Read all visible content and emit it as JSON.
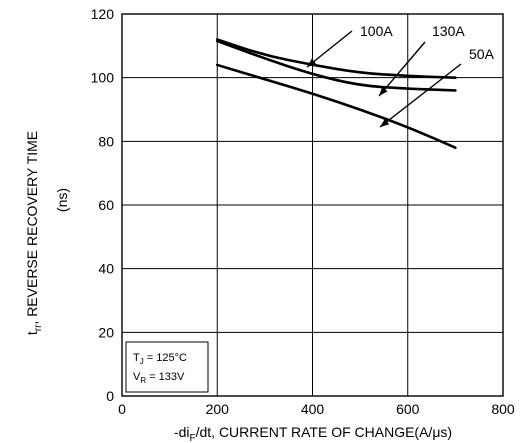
{
  "chart_data": {
    "type": "line",
    "xlabel_prefix": "-di",
    "xlabel_sub": "F",
    "xlabel_suffix": "/dt, CURRENT RATE OF CHANGE(A/μs)",
    "ylabel_line1_prefix": "t",
    "ylabel_line1_sub": "rr",
    "ylabel_line1_suffix": ", REVERSE RECOVERY TIME",
    "ylabel_line2": "(ns)",
    "xlim": [
      0,
      800
    ],
    "ylim": [
      0,
      120
    ],
    "x_ticks": [
      "0",
      "200",
      "400",
      "600",
      "800"
    ],
    "y_ticks": [
      "0",
      "20",
      "40",
      "60",
      "80",
      "100",
      "120"
    ],
    "grid": true,
    "conditions": {
      "tj_prefix": "T",
      "tj_sub": "J",
      "tj_suffix": " = 125°C",
      "vr_prefix": "V",
      "vr_sub": "R",
      "vr_suffix": " = 133V"
    },
    "series": [
      {
        "name": "100A",
        "x": [
          200,
          300,
          400,
          500,
          600,
          700
        ],
        "y": [
          112,
          107,
          104,
          101.5,
          100.5,
          100
        ]
      },
      {
        "name": "130A",
        "x": [
          200,
          300,
          400,
          500,
          600,
          700
        ],
        "y": [
          111.5,
          106,
          101,
          97.5,
          96.5,
          96
        ]
      },
      {
        "name": "50A",
        "x": [
          200,
          300,
          400,
          500,
          600,
          700
        ],
        "y": [
          104,
          99.5,
          95,
          90,
          84.5,
          78
        ]
      }
    ]
  }
}
